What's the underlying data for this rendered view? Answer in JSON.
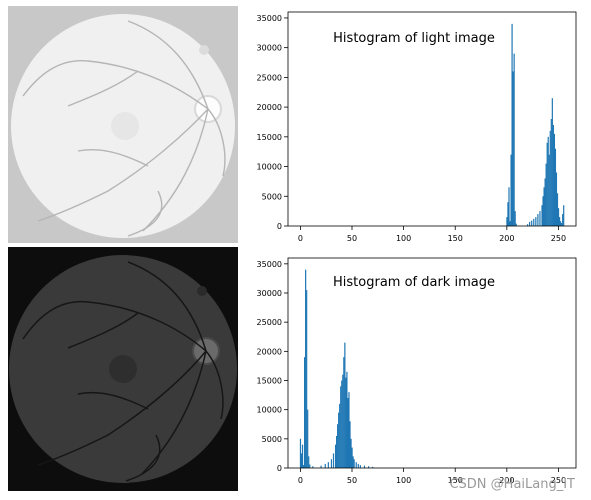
{
  "images": {
    "light": {
      "background": "#c8c8c8",
      "disc": "#f0f0f0",
      "vessel": "#b5b5b5"
    },
    "dark": {
      "background": "#0d0d0d",
      "disc": "#3a3a3a",
      "vessel": "#161616"
    }
  },
  "colors": {
    "bar": "#1f77b4",
    "axis": "#000000"
  },
  "watermark": "CSDN @HaiLang_IT",
  "chart_data": [
    {
      "type": "bar",
      "title": "Histogram of light image",
      "xlim": [
        -12,
        267
      ],
      "ylim": [
        0,
        36000
      ],
      "xticks": [
        0,
        50,
        100,
        150,
        200,
        250
      ],
      "yticks": [
        0,
        5000,
        10000,
        15000,
        20000,
        25000,
        30000,
        35000
      ],
      "bins": [
        {
          "x": 200,
          "y": 1500
        },
        {
          "x": 201,
          "y": 4000
        },
        {
          "x": 202,
          "y": 6500
        },
        {
          "x": 203,
          "y": 800
        },
        {
          "x": 204,
          "y": 12000
        },
        {
          "x": 205,
          "y": 34000
        },
        {
          "x": 206,
          "y": 26000
        },
        {
          "x": 207,
          "y": 29000
        },
        {
          "x": 208,
          "y": 2500
        },
        {
          "x": 209,
          "y": 400
        },
        {
          "x": 220,
          "y": 300
        },
        {
          "x": 222,
          "y": 700
        },
        {
          "x": 224,
          "y": 900
        },
        {
          "x": 226,
          "y": 1200
        },
        {
          "x": 228,
          "y": 1500
        },
        {
          "x": 230,
          "y": 2000
        },
        {
          "x": 232,
          "y": 2500
        },
        {
          "x": 234,
          "y": 3500
        },
        {
          "x": 235,
          "y": 5000
        },
        {
          "x": 236,
          "y": 6500
        },
        {
          "x": 237,
          "y": 8000
        },
        {
          "x": 238,
          "y": 10500
        },
        {
          "x": 239,
          "y": 14000
        },
        {
          "x": 240,
          "y": 15000
        },
        {
          "x": 241,
          "y": 12000
        },
        {
          "x": 242,
          "y": 16000
        },
        {
          "x": 243,
          "y": 18000
        },
        {
          "x": 244,
          "y": 21500
        },
        {
          "x": 245,
          "y": 17000
        },
        {
          "x": 246,
          "y": 15500
        },
        {
          "x": 247,
          "y": 13000
        },
        {
          "x": 248,
          "y": 9000
        },
        {
          "x": 249,
          "y": 5500
        },
        {
          "x": 250,
          "y": 3000
        },
        {
          "x": 251,
          "y": 1500
        },
        {
          "x": 252,
          "y": 800
        },
        {
          "x": 253,
          "y": 500
        },
        {
          "x": 254,
          "y": 2000
        },
        {
          "x": 255,
          "y": 3500
        }
      ]
    },
    {
      "type": "bar",
      "title": "Histogram of dark image",
      "xlim": [
        -12,
        267
      ],
      "ylim": [
        0,
        36000
      ],
      "xticks": [
        0,
        50,
        100,
        150,
        200,
        250
      ],
      "yticks": [
        0,
        5000,
        10000,
        15000,
        20000,
        25000,
        30000,
        35000
      ],
      "bins": [
        {
          "x": 0,
          "y": 5000
        },
        {
          "x": 1,
          "y": 2500
        },
        {
          "x": 2,
          "y": 4000
        },
        {
          "x": 3,
          "y": 500
        },
        {
          "x": 4,
          "y": 19000
        },
        {
          "x": 5,
          "y": 34000
        },
        {
          "x": 6,
          "y": 30500
        },
        {
          "x": 7,
          "y": 10000
        },
        {
          "x": 8,
          "y": 2000
        },
        {
          "x": 9,
          "y": 600
        },
        {
          "x": 12,
          "y": 300
        },
        {
          "x": 20,
          "y": 400
        },
        {
          "x": 24,
          "y": 700
        },
        {
          "x": 27,
          "y": 1000
        },
        {
          "x": 30,
          "y": 1500
        },
        {
          "x": 32,
          "y": 2500
        },
        {
          "x": 34,
          "y": 4000
        },
        {
          "x": 35,
          "y": 5500
        },
        {
          "x": 36,
          "y": 7500
        },
        {
          "x": 37,
          "y": 9500
        },
        {
          "x": 38,
          "y": 11000
        },
        {
          "x": 39,
          "y": 14000
        },
        {
          "x": 40,
          "y": 15000
        },
        {
          "x": 41,
          "y": 16000
        },
        {
          "x": 42,
          "y": 19000
        },
        {
          "x": 43,
          "y": 21500
        },
        {
          "x": 44,
          "y": 15500
        },
        {
          "x": 45,
          "y": 16500
        },
        {
          "x": 46,
          "y": 12000
        },
        {
          "x": 47,
          "y": 13000
        },
        {
          "x": 48,
          "y": 8000
        },
        {
          "x": 49,
          "y": 5000
        },
        {
          "x": 50,
          "y": 3500
        },
        {
          "x": 51,
          "y": 2000
        },
        {
          "x": 52,
          "y": 1500
        },
        {
          "x": 54,
          "y": 1000
        },
        {
          "x": 56,
          "y": 700
        },
        {
          "x": 58,
          "y": 500
        },
        {
          "x": 62,
          "y": 400
        },
        {
          "x": 66,
          "y": 300
        },
        {
          "x": 70,
          "y": 200
        }
      ]
    }
  ]
}
